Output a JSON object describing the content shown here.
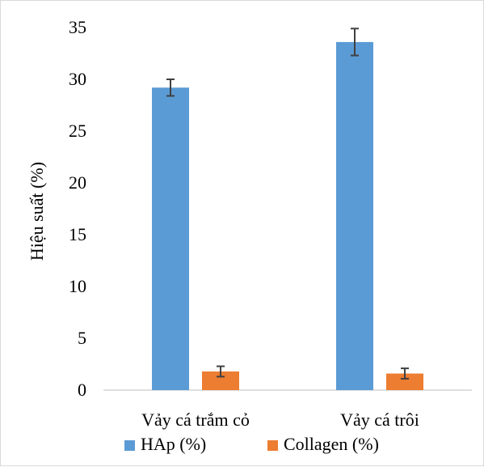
{
  "chart_data": {
    "type": "bar",
    "title": "",
    "xlabel": "",
    "ylabel": "Hiệu suất (%)",
    "ylim": [
      0,
      35
    ],
    "yticks": [
      0,
      5,
      10,
      15,
      20,
      25,
      30,
      35
    ],
    "grid": false,
    "legend_position": "bottom",
    "categories": [
      "Vảy cá trắm cỏ",
      "Vảy cá trôi"
    ],
    "series": [
      {
        "name": "HAp (%)",
        "color": "#5B9BD5",
        "values": [
          29.2,
          33.6
        ],
        "errors": [
          0.8,
          1.3
        ]
      },
      {
        "name": "Collagen (%)",
        "color": "#ED7D31",
        "values": [
          1.8,
          1.6
        ],
        "errors": [
          0.5,
          0.5
        ]
      }
    ]
  }
}
